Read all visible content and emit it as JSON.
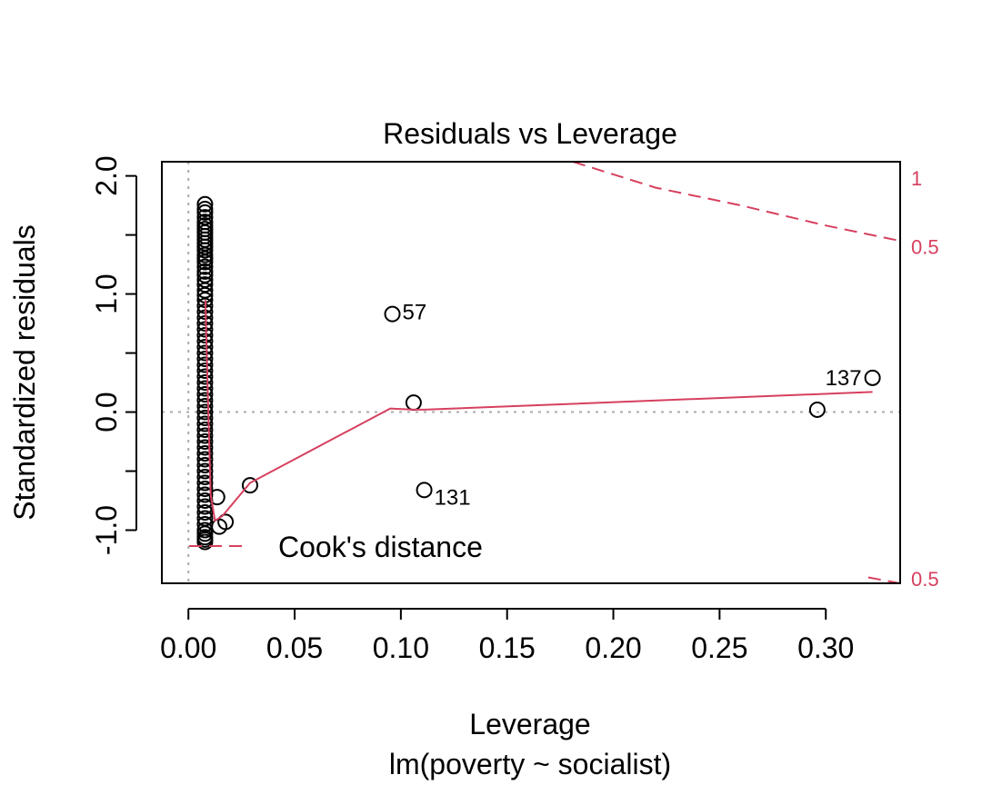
{
  "chart_data": {
    "type": "scatter",
    "title": "Residuals vs Leverage",
    "xlabel": "Leverage",
    "subtitle": "lm(poverty ~ socialist)",
    "ylabel": "Standardized residuals",
    "xlim": [
      -0.0125,
      0.335
    ],
    "ylim": [
      -1.45,
      2.12
    ],
    "x_ticks": [
      0.0,
      0.05,
      0.1,
      0.15,
      0.2,
      0.25,
      0.3
    ],
    "x_tick_labels": [
      "0.00",
      "0.05",
      "0.10",
      "0.15",
      "0.20",
      "0.25",
      "0.30"
    ],
    "y_ticks": [
      -1.0,
      0.0,
      1.0,
      2.0
    ],
    "y_tick_labels": [
      "-1.0",
      "0.0",
      "1.0",
      "2.0"
    ],
    "y_minor_ticks": [
      -0.5,
      0.5,
      1.5
    ],
    "reference_lines": {
      "x": 0,
      "y": 0,
      "style": "dotted",
      "color": "#aaaaaa"
    },
    "points": {
      "cluster_x": 0.0078,
      "cluster_y": [
        1.76,
        1.72,
        1.69,
        1.65,
        1.61,
        1.58,
        1.55,
        1.52,
        1.49,
        1.46,
        1.43,
        1.4,
        1.37,
        1.33,
        1.3,
        1.27,
        1.23,
        1.19,
        1.16,
        1.12,
        1.08,
        1.03,
        0.99,
        0.95,
        0.9,
        0.85,
        0.8,
        0.75,
        0.7,
        0.65,
        0.6,
        0.55,
        0.5,
        0.45,
        0.4,
        0.35,
        0.3,
        0.25,
        0.2,
        0.15,
        0.1,
        0.05,
        0.0,
        -0.05,
        -0.1,
        -0.15,
        -0.2,
        -0.25,
        -0.3,
        -0.35,
        -0.4,
        -0.45,
        -0.5,
        -0.55,
        -0.6,
        -0.65,
        -0.7,
        -0.75,
        -0.8,
        -0.85,
        -0.9,
        -0.95,
        -1.0,
        -1.03,
        -1.06,
        -1.08,
        -1.1
      ],
      "other": [
        {
          "x": 0.0135,
          "y": -0.72
        },
        {
          "x": 0.0145,
          "y": -0.97
        },
        {
          "x": 0.0175,
          "y": -0.93
        },
        {
          "x": 0.029,
          "y": -0.62
        },
        {
          "x": 0.096,
          "y": 0.83,
          "label": "57"
        },
        {
          "x": 0.106,
          "y": 0.08
        },
        {
          "x": 0.111,
          "y": -0.66,
          "label": "131"
        },
        {
          "x": 0.296,
          "y": 0.02
        },
        {
          "x": 0.322,
          "y": 0.29,
          "label": "137"
        }
      ]
    },
    "smoother": {
      "color": "#d6405e",
      "x": [
        0.008,
        0.009,
        0.0105,
        0.0125,
        0.016,
        0.029,
        0.095,
        0.106,
        0.111,
        0.322
      ],
      "y": [
        0.95,
        0.25,
        -0.7,
        -0.92,
        -0.88,
        -0.6,
        0.03,
        0.02,
        0.02,
        0.17
      ]
    },
    "cooks_distance": {
      "color": "#d6405e",
      "name": "Cook's distance",
      "legend": "bottom-left",
      "contours": [
        {
          "label": "1",
          "x": [
            0.181,
            0.23,
            0.28,
            0.335
          ],
          "y": [
            2.12,
            2.12,
            2.12,
            2.12
          ]
        },
        {
          "label": "0.5",
          "x": [
            0.181,
            0.22,
            0.26,
            0.3,
            0.335
          ],
          "y": [
            2.12,
            1.9,
            1.75,
            1.58,
            1.45
          ]
        },
        {
          "label": "0.5",
          "x": [
            0.32,
            0.335
          ],
          "y": [
            -1.4,
            -1.45
          ]
        }
      ],
      "right_labels": [
        {
          "text": "1",
          "y": 1.98
        },
        {
          "text": "0.5",
          "y": 1.4
        },
        {
          "text": "0.5",
          "y": -1.41
        }
      ]
    }
  }
}
